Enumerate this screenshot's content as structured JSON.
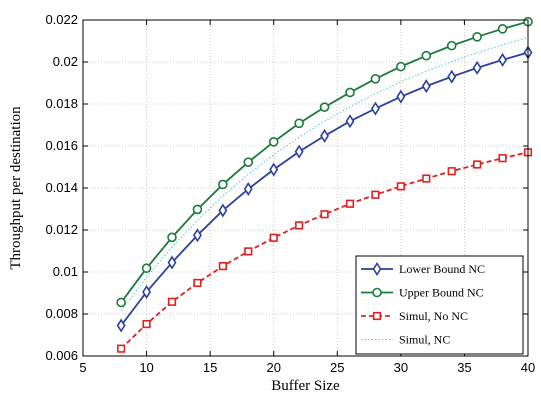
{
  "chart_data": {
    "type": "line",
    "xlabel": "Buffer Size",
    "ylabel": "Throughput per destination",
    "xlim": [
      5,
      40
    ],
    "ylim": [
      0.006,
      0.022
    ],
    "grid": true,
    "legend_position": "bottom-right",
    "xticks": [
      5,
      10,
      15,
      20,
      25,
      30,
      35,
      40
    ],
    "xtick_labels": [
      "5",
      "10",
      "15",
      "20",
      "25",
      "30",
      "35",
      "40"
    ],
    "yticks": [
      0.006,
      0.008,
      0.01,
      0.012,
      0.014,
      0.016,
      0.018,
      0.02,
      0.022
    ],
    "ytick_labels": [
      "0.006",
      "0.008",
      "0.01",
      "0.012",
      "0.014",
      "0.016",
      "0.018",
      "0.02",
      "0.022"
    ],
    "x": [
      8,
      10,
      12,
      14,
      16,
      18,
      20,
      22,
      24,
      26,
      28,
      30,
      32,
      34,
      36,
      38,
      40
    ],
    "series": [
      {
        "name": "Lower Bound NC",
        "color": "#2b3f9e",
        "marker": "diamond",
        "line": "solid",
        "values": [
          0.00745,
          0.00905,
          0.01045,
          0.01175,
          0.01293,
          0.01395,
          0.01488,
          0.01573,
          0.01648,
          0.01718,
          0.01778,
          0.01835,
          0.01885,
          0.0193,
          0.01972,
          0.0201,
          0.02045
        ]
      },
      {
        "name": "Upper Bound NC",
        "color": "#1a7a3a",
        "marker": "circle",
        "line": "solid",
        "values": [
          0.00855,
          0.01018,
          0.01165,
          0.01298,
          0.01417,
          0.01523,
          0.0162,
          0.01708,
          0.01785,
          0.01855,
          0.0192,
          0.01978,
          0.0203,
          0.02078,
          0.0212,
          0.02158,
          0.02192
        ]
      },
      {
        "name": "Simul, No NC",
        "color": "#e02020",
        "marker": "square",
        "line": "dashed",
        "values": [
          0.00635,
          0.00752,
          0.00858,
          0.00948,
          0.01028,
          0.01098,
          0.01163,
          0.01222,
          0.01275,
          0.01325,
          0.01368,
          0.01408,
          0.01445,
          0.0148,
          0.01512,
          0.01542,
          0.0157
        ]
      },
      {
        "name": "Simul, NC",
        "color": "#5fc8dc",
        "marker": "none",
        "line": "dotted",
        "values": [
          0.00815,
          0.00975,
          0.01118,
          0.01246,
          0.01362,
          0.01465,
          0.01558,
          0.01642,
          0.01718,
          0.01787,
          0.01849,
          0.01905,
          0.01956,
          0.02002,
          0.02044,
          0.02082,
          0.02116
        ]
      }
    ]
  }
}
